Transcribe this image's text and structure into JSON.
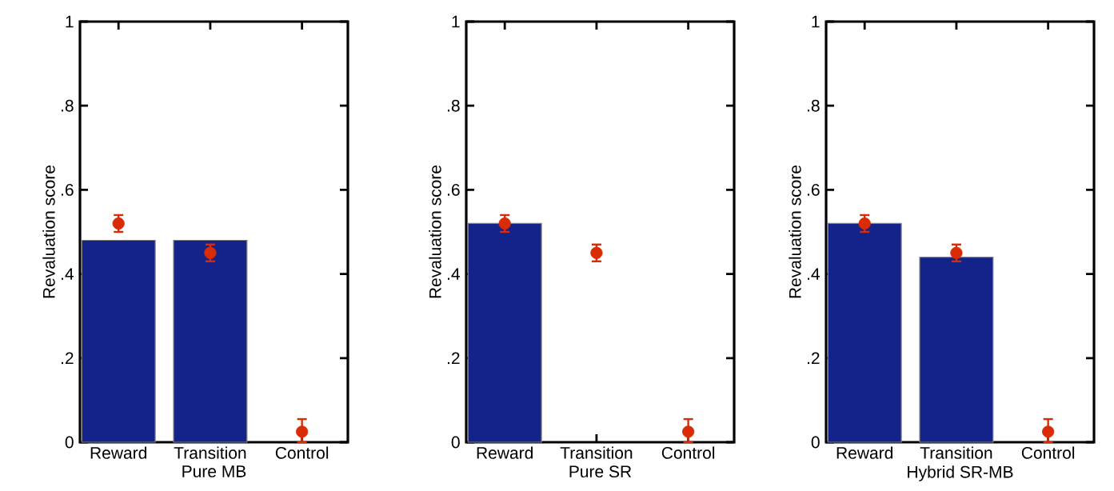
{
  "chart_data": [
    {
      "type": "bar",
      "xlabel": "Pure MB",
      "ylabel": "Revaluation score",
      "categories": [
        "Reward",
        "Transition",
        "Control"
      ],
      "ylim": [
        0,
        1
      ],
      "yticks": [
        0,
        {
          "value": 0.2,
          "label": ".2"
        },
        {
          "value": 0.4,
          "label": ".4"
        },
        {
          "value": 0.6,
          "label": ".6"
        },
        {
          "value": 0.8,
          "label": ".8"
        },
        1
      ],
      "series": [
        {
          "color": "#14238a",
          "values": [
            0.48,
            0.48,
            null
          ]
        },
        {
          "type": "scatter",
          "color": "#d92b06",
          "marker": "circle",
          "values": [
            0.52,
            0.45,
            0.025
          ],
          "errors": [
            0.02,
            0.02,
            [
              0,
              0.055
            ]
          ]
        }
      ]
    },
    {
      "type": "bar",
      "xlabel": "Pure SR",
      "ylabel": "Revaluation score",
      "categories": [
        "Reward",
        "Transition",
        "Control"
      ],
      "ylim": [
        0,
        1
      ],
      "yticks": [
        0,
        {
          "value": 0.2,
          "label": ".2"
        },
        {
          "value": 0.4,
          "label": ".4"
        },
        {
          "value": 0.6,
          "label": ".6"
        },
        {
          "value": 0.8,
          "label": ".8"
        },
        1
      ],
      "series": [
        {
          "color": "#14238a",
          "values": [
            0.52,
            null,
            null
          ]
        },
        {
          "type": "scatter",
          "color": "#d92b06",
          "marker": "circle",
          "values": [
            0.52,
            0.45,
            0.025
          ],
          "errors": [
            0.02,
            0.02,
            [
              0,
              0.055
            ]
          ]
        }
      ]
    },
    {
      "type": "bar",
      "xlabel": "Hybrid SR-MB",
      "ylabel": "Revaluation score",
      "categories": [
        "Reward",
        "Transition",
        "Control"
      ],
      "ylim": [
        0,
        1
      ],
      "yticks": [
        0,
        {
          "value": 0.2,
          "label": ".2"
        },
        {
          "value": 0.4,
          "label": ".4"
        },
        {
          "value": 0.6,
          "label": ".6"
        },
        {
          "value": 0.8,
          "label": ".8"
        },
        1
      ],
      "series": [
        {
          "color": "#14238a",
          "values": [
            0.52,
            0.44,
            null
          ]
        },
        {
          "type": "scatter",
          "color": "#d92b06",
          "marker": "circle",
          "values": [
            0.52,
            0.45,
            0.025
          ],
          "errors": [
            0.02,
            0.02,
            [
              0,
              0.055
            ]
          ]
        }
      ]
    }
  ]
}
